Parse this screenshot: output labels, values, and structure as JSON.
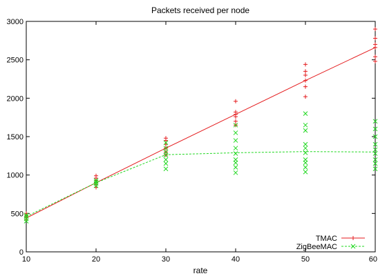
{
  "chart_data": {
    "type": "line",
    "title": "Packets received per node",
    "xlabel": "rate",
    "ylabel": "",
    "xlim": [
      10,
      60
    ],
    "ylim": [
      0,
      3000
    ],
    "x_ticks": [
      10,
      20,
      30,
      40,
      50,
      60
    ],
    "y_ticks": [
      0,
      500,
      1000,
      1500,
      2000,
      2500,
      3000
    ],
    "grid": false,
    "legend": "bottom-right",
    "series": [
      {
        "name": "TMAC",
        "color": "#e41a1c",
        "marker": "plus",
        "line_style": "solid",
        "line": [
          [
            10,
            440
          ],
          [
            20,
            900
          ],
          [
            30,
            1350
          ],
          [
            40,
            1790
          ],
          [
            50,
            2230
          ],
          [
            60,
            2660
          ]
        ],
        "points": [
          [
            10,
            420
          ],
          [
            10,
            440
          ],
          [
            10,
            460
          ],
          [
            10,
            480
          ],
          [
            10,
            500
          ],
          [
            20,
            840
          ],
          [
            20,
            870
          ],
          [
            20,
            900
          ],
          [
            20,
            930
          ],
          [
            20,
            960
          ],
          [
            20,
            990
          ],
          [
            30,
            1260
          ],
          [
            30,
            1300
          ],
          [
            30,
            1350
          ],
          [
            30,
            1400
          ],
          [
            30,
            1450
          ],
          [
            30,
            1480
          ],
          [
            40,
            1650
          ],
          [
            40,
            1700
          ],
          [
            40,
            1760
          ],
          [
            40,
            1790
          ],
          [
            40,
            1820
          ],
          [
            40,
            1960
          ],
          [
            50,
            2020
          ],
          [
            50,
            2150
          ],
          [
            50,
            2230
          ],
          [
            50,
            2300
          ],
          [
            50,
            2350
          ],
          [
            50,
            2440
          ],
          [
            60,
            2480
          ],
          [
            60,
            2540
          ],
          [
            60,
            2660
          ],
          [
            60,
            2700
          ],
          [
            60,
            2780
          ],
          [
            60,
            2900
          ]
        ]
      },
      {
        "name": "ZigBeeMAC",
        "color": "#1fd81f",
        "marker": "x",
        "line_style": "dashed",
        "line": [
          [
            10,
            460
          ],
          [
            20,
            900
          ],
          [
            30,
            1265
          ],
          [
            40,
            1290
          ],
          [
            50,
            1305
          ],
          [
            60,
            1300
          ]
        ],
        "points": [
          [
            10,
            400
          ],
          [
            10,
            430
          ],
          [
            10,
            460
          ],
          [
            10,
            480
          ],
          [
            20,
            860
          ],
          [
            20,
            890
          ],
          [
            20,
            910
          ],
          [
            20,
            930
          ],
          [
            30,
            1080
          ],
          [
            30,
            1150
          ],
          [
            30,
            1200
          ],
          [
            30,
            1260
          ],
          [
            30,
            1300
          ],
          [
            30,
            1350
          ],
          [
            30,
            1420
          ],
          [
            40,
            1030
          ],
          [
            40,
            1100
          ],
          [
            40,
            1160
          ],
          [
            40,
            1200
          ],
          [
            40,
            1280
          ],
          [
            40,
            1350
          ],
          [
            40,
            1450
          ],
          [
            40,
            1550
          ],
          [
            40,
            1650
          ],
          [
            50,
            1040
          ],
          [
            50,
            1100
          ],
          [
            50,
            1160
          ],
          [
            50,
            1200
          ],
          [
            50,
            1290
          ],
          [
            50,
            1350
          ],
          [
            50,
            1400
          ],
          [
            50,
            1580
          ],
          [
            50,
            1650
          ],
          [
            50,
            1800
          ],
          [
            60,
            1080
          ],
          [
            60,
            1150
          ],
          [
            60,
            1200
          ],
          [
            60,
            1280
          ],
          [
            60,
            1330
          ],
          [
            60,
            1400
          ],
          [
            60,
            1500
          ],
          [
            60,
            1600
          ],
          [
            60,
            1700
          ]
        ]
      }
    ]
  }
}
